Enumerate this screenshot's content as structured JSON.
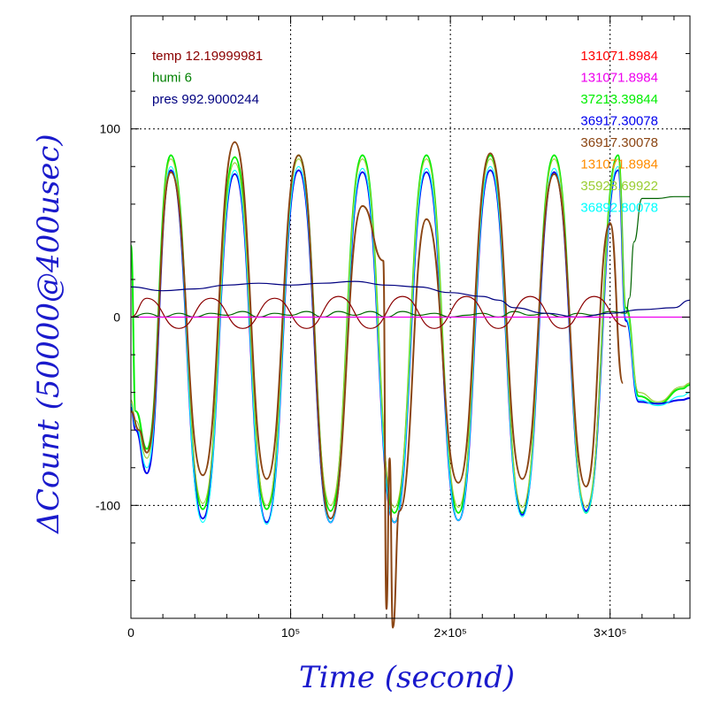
{
  "chart_data": {
    "type": "line",
    "title": "",
    "xlabel": "Time (second)",
    "ylabel": "ΔCount (50000@400usec)",
    "xlim": [
      0,
      350000
    ],
    "ylim": [
      -160,
      160
    ],
    "grid": "dashed at labelled ticks",
    "x_ticks": [
      {
        "value": 0,
        "label": "0"
      },
      {
        "value": 100000,
        "label": "10⁵"
      },
      {
        "value": 200000,
        "label": "2×10⁵"
      },
      {
        "value": 300000,
        "label": "3×10⁵"
      }
    ],
    "y_ticks": [
      {
        "value": -100,
        "label": "-100"
      },
      {
        "value": 0,
        "label": "0"
      },
      {
        "value": 100,
        "label": "100"
      }
    ],
    "legend_left": [
      {
        "text": "temp 12.19999981",
        "color": "#8b0000"
      },
      {
        "text": "humi 6",
        "color": "#008000"
      },
      {
        "text": "pres 992.9000244",
        "color": "#000080"
      }
    ],
    "legend_right": [
      {
        "text": "131071.8984",
        "color": "#ff0000"
      },
      {
        "text": "131071.8984",
        "color": "#ee00ee"
      },
      {
        "text": "37213.39844",
        "color": "#00ee00"
      },
      {
        "text": "36917.30078",
        "color": "#0000ee"
      },
      {
        "text": "36917.30078",
        "color": "#8b4513"
      },
      {
        "text": "131071.8984",
        "color": "#ff8c00"
      },
      {
        "text": "35928.69922",
        "color": "#9acd32"
      },
      {
        "text": "36892.80078",
        "color": "#00ffff"
      }
    ],
    "series": [
      {
        "color": "#00ee00",
        "x": [
          0,
          3000,
          10000,
          25000,
          45000,
          65000,
          85000,
          105000,
          125000,
          145000,
          165000,
          185000,
          205000,
          225000,
          245000,
          265000,
          285000,
          305000,
          310000,
          318000,
          330000,
          345000,
          350000
        ],
        "y": [
          38,
          -50,
          -70,
          86,
          -102,
          85,
          -102,
          86,
          -103,
          86,
          -104,
          86,
          -104,
          86,
          -104,
          86,
          -104,
          86,
          5,
          -42,
          -46,
          -38,
          -36
        ]
      },
      {
        "color": "#0000ee",
        "x": [
          0,
          3000,
          10000,
          25000,
          45000,
          65000,
          85000,
          105000,
          125000,
          145000,
          165000,
          185000,
          205000,
          225000,
          245000,
          265000,
          285000,
          305000,
          310000,
          318000,
          330000,
          345000,
          350000
        ],
        "y": [
          -48,
          -60,
          -83,
          78,
          -107,
          76,
          -109,
          78,
          -109,
          77,
          -109,
          77,
          -108,
          78,
          -105,
          77,
          -103,
          78,
          -2,
          -45,
          -46,
          -44,
          -43
        ]
      },
      {
        "color": "#00ffff",
        "x": [
          0,
          3000,
          10000,
          25000,
          45000,
          65000,
          85000,
          105000,
          125000,
          145000,
          165000,
          185000,
          205000,
          225000,
          245000,
          265000,
          285000,
          305000,
          310000,
          318000,
          330000,
          345000,
          350000
        ],
        "y": [
          -46,
          -58,
          -80,
          80,
          -109,
          78,
          -110,
          80,
          -109,
          79,
          -109,
          79,
          -108,
          80,
          -106,
          79,
          -104,
          80,
          -1,
          -44,
          -47,
          -42,
          -40
        ]
      },
      {
        "color": "#9acd32",
        "x": [
          0,
          3000,
          10000,
          25000,
          45000,
          65000,
          85000,
          105000,
          125000,
          145000,
          165000,
          185000,
          205000,
          225000,
          245000,
          265000,
          285000,
          305000,
          310000,
          318000,
          330000,
          345000,
          350000
        ],
        "y": [
          -44,
          -55,
          -75,
          84,
          -99,
          82,
          -100,
          84,
          -100,
          84,
          -101,
          84,
          -101,
          84,
          -101,
          84,
          -101,
          84,
          3,
          -40,
          -45,
          -37,
          -35
        ]
      },
      {
        "color": "#8b4513",
        "x": [
          0,
          5000,
          10000,
          25000,
          45000,
          65000,
          85000,
          105000,
          125000,
          145000,
          158000,
          160000,
          162000,
          164000,
          168000,
          185000,
          205000,
          225000,
          245000,
          265000,
          285000,
          300000,
          308000
        ],
        "y": [
          -50,
          -60,
          -72,
          77,
          -84,
          93,
          -86,
          86,
          -107,
          59,
          30,
          -155,
          -75,
          -165,
          -103,
          52,
          -88,
          87,
          -86,
          76,
          -90,
          50,
          -35
        ]
      },
      {
        "color": "#006400",
        "x": [
          0,
          10000,
          20000,
          30000,
          40000,
          50000,
          60000,
          70000,
          80000,
          90000,
          100000,
          110000,
          120000,
          130000,
          140000,
          150000,
          160000,
          170000,
          180000,
          190000,
          200000,
          210000,
          220000,
          230000,
          240000,
          250000,
          260000,
          270000,
          280000,
          290000,
          300000,
          310000,
          312000,
          315000,
          320000,
          330000,
          340000,
          350000
        ],
        "y": [
          0,
          2,
          0,
          2,
          0,
          2,
          1,
          3,
          0,
          2,
          1,
          3,
          0,
          3,
          1,
          3,
          0,
          3,
          1,
          2,
          0,
          1,
          2,
          0,
          3,
          1,
          2,
          0,
          2,
          1,
          3,
          2,
          10,
          40,
          63,
          63,
          64,
          64
        ]
      },
      {
        "color": "#8b0000",
        "x": [
          0,
          10000,
          30000,
          50000,
          70000,
          90000,
          110000,
          130000,
          150000,
          170000,
          190000,
          210000,
          230000,
          250000,
          270000,
          290000,
          310000
        ],
        "y": [
          0,
          10,
          -6,
          10,
          -6,
          10,
          -6,
          11,
          -6,
          11,
          -6,
          11,
          -6,
          11,
          -6,
          11,
          -5
        ]
      },
      {
        "color": "#000080",
        "x": [
          0,
          20000,
          40000,
          60000,
          80000,
          100000,
          120000,
          140000,
          160000,
          180000,
          200000,
          220000,
          230000,
          240000,
          260000,
          280000,
          300000,
          320000,
          340000,
          350000
        ],
        "y": [
          16,
          14,
          15,
          17,
          18,
          17,
          18,
          19,
          17,
          16,
          13,
          11,
          9,
          5,
          2,
          0,
          2,
          4,
          5,
          9
        ]
      },
      {
        "color": "#ee00ee",
        "x": [
          0,
          350000
        ],
        "y": [
          0,
          0
        ]
      }
    ]
  }
}
